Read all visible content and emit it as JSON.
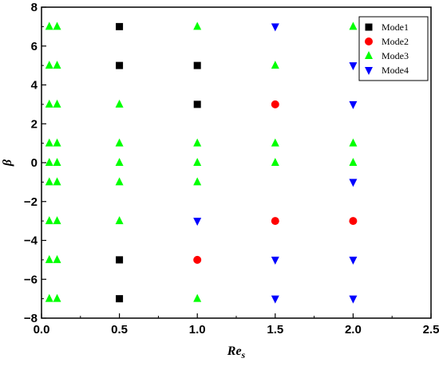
{
  "chart_data": {
    "type": "scatter",
    "xlabel": "Re",
    "xlabel_sub": "s",
    "ylabel": "β",
    "xlim": [
      0.0,
      2.5
    ],
    "ylim": [
      -8,
      8
    ],
    "xticks": [
      0.0,
      0.5,
      1.0,
      1.5,
      2.0,
      2.5
    ],
    "yticks": [
      -8,
      -6,
      -4,
      -2,
      0,
      2,
      4,
      6,
      8
    ],
    "x_tick_labels": [
      "0.0",
      "0.5",
      "1.0",
      "1.5",
      "2.0",
      "2.5"
    ],
    "y_tick_labels": [
      "−8",
      "−6",
      "−4",
      "−2",
      "0",
      "2",
      "4",
      "6",
      "8"
    ],
    "grid": false,
    "legend_position": "top-right",
    "series": [
      {
        "name": "Mode1",
        "marker": "square",
        "color": "#000000",
        "points": [
          [
            0.5,
            7
          ],
          [
            0.5,
            5
          ],
          [
            1.0,
            5
          ],
          [
            1.0,
            3
          ],
          [
            0.5,
            -5
          ],
          [
            0.5,
            -7
          ]
        ]
      },
      {
        "name": "Mode2",
        "marker": "circle",
        "color": "#ff0000",
        "points": [
          [
            1.5,
            3
          ],
          [
            1.5,
            -3
          ],
          [
            2.0,
            -3
          ],
          [
            1.0,
            -5
          ]
        ]
      },
      {
        "name": "Mode3",
        "marker": "triangle-up",
        "color": "#00ff00",
        "points": [
          [
            0.05,
            7
          ],
          [
            0.1,
            7
          ],
          [
            1.0,
            7
          ],
          [
            2.0,
            7
          ],
          [
            0.05,
            5
          ],
          [
            0.1,
            5
          ],
          [
            1.5,
            5
          ],
          [
            0.05,
            3
          ],
          [
            0.1,
            3
          ],
          [
            0.5,
            3
          ],
          [
            0.05,
            1
          ],
          [
            0.1,
            1
          ],
          [
            0.5,
            1
          ],
          [
            1.0,
            1
          ],
          [
            1.5,
            1
          ],
          [
            2.0,
            1
          ],
          [
            0.05,
            0
          ],
          [
            0.1,
            0
          ],
          [
            0.5,
            0
          ],
          [
            1.0,
            0
          ],
          [
            1.5,
            0
          ],
          [
            2.0,
            0
          ],
          [
            0.05,
            -1
          ],
          [
            0.1,
            -1
          ],
          [
            0.5,
            -1
          ],
          [
            1.0,
            -1
          ],
          [
            0.05,
            -3
          ],
          [
            0.1,
            -3
          ],
          [
            0.5,
            -3
          ],
          [
            0.05,
            -5
          ],
          [
            0.1,
            -5
          ],
          [
            0.05,
            -7
          ],
          [
            0.1,
            -7
          ],
          [
            1.0,
            -7
          ]
        ]
      },
      {
        "name": "Mode4",
        "marker": "triangle-down",
        "color": "#0000ff",
        "points": [
          [
            1.5,
            7
          ],
          [
            2.0,
            5
          ],
          [
            2.0,
            3
          ],
          [
            2.0,
            -1
          ],
          [
            1.0,
            -3
          ],
          [
            1.5,
            -5
          ],
          [
            2.0,
            -5
          ],
          [
            1.5,
            -7
          ],
          [
            2.0,
            -7
          ]
        ]
      }
    ]
  }
}
